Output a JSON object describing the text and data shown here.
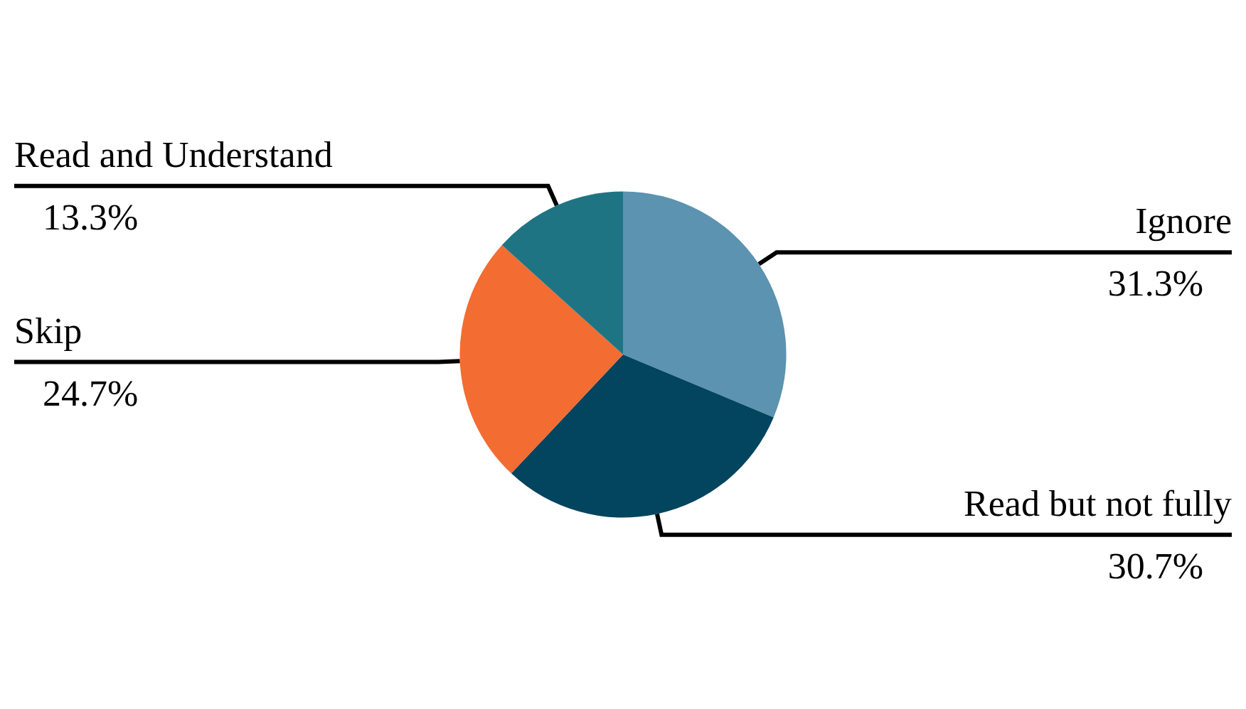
{
  "chart_data": {
    "type": "pie",
    "categories": [
      "Ignore",
      "Read but not fully",
      "Skip",
      "Read and Understand"
    ],
    "values": [
      31.3,
      30.7,
      24.7,
      13.3
    ],
    "value_labels": [
      "31.3%",
      "30.7%",
      "24.7%",
      "13.3%"
    ],
    "colors": [
      "#5b93b0",
      "#03445e",
      "#f36c32",
      "#1f7483"
    ],
    "legend": false
  }
}
